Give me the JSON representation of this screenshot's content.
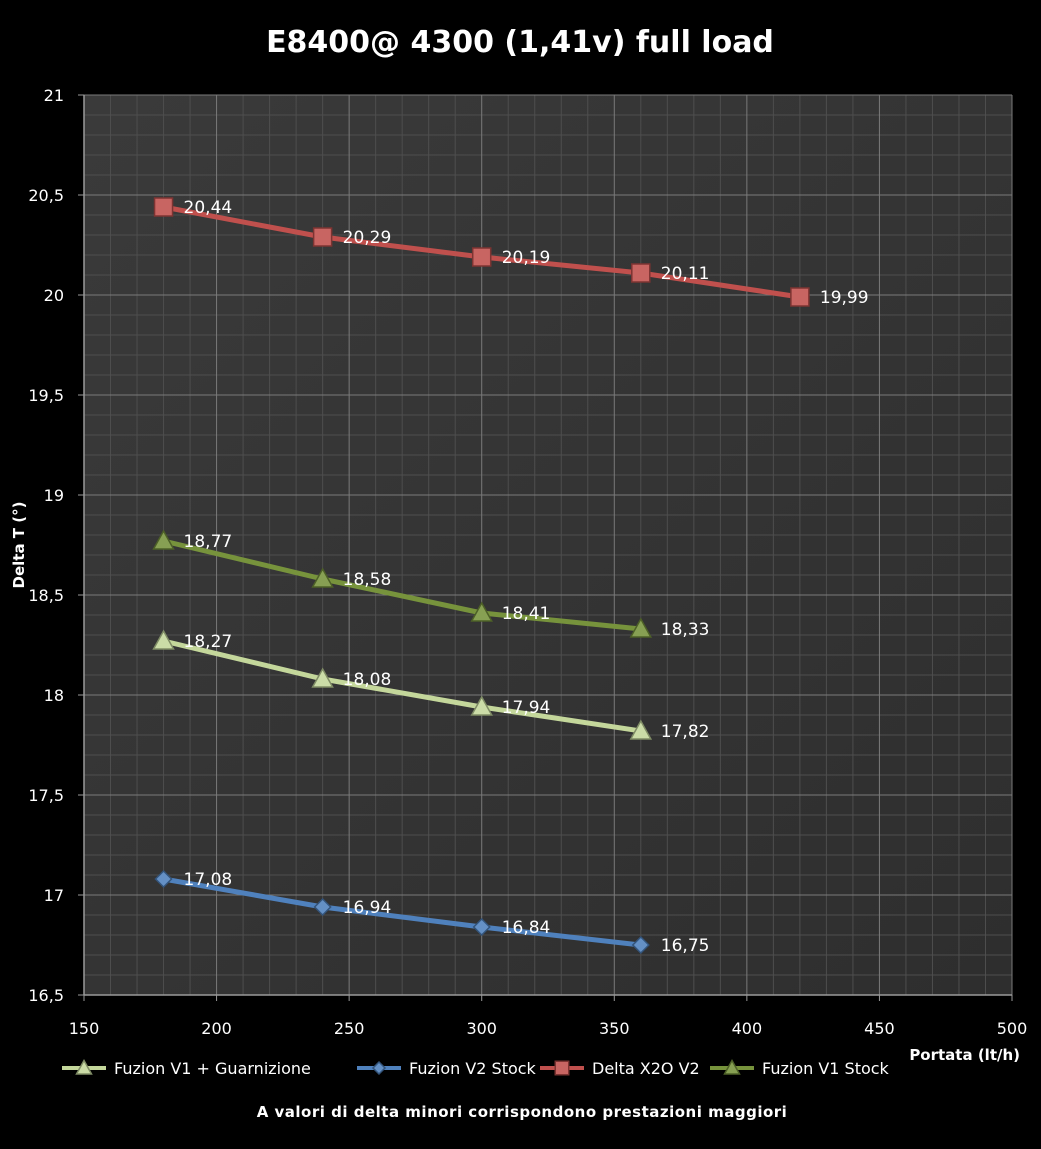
{
  "chart_data": {
    "type": "line",
    "title": "E8400@ 4300 (1,41v) full load",
    "xlabel": "Portata (lt/h)",
    "ylabel": "Delta T (°)",
    "footnote": "A valori di delta minori corrispondono prestazioni maggiori",
    "xlim": [
      150,
      500
    ],
    "ylim": [
      16.5,
      21
    ],
    "x_ticks": [
      150,
      200,
      250,
      300,
      350,
      400,
      450,
      500
    ],
    "x_tick_labels": [
      "150",
      "200",
      "250",
      "300",
      "350",
      "400",
      "450",
      "500"
    ],
    "y_ticks": [
      16.5,
      17,
      17.5,
      18,
      18.5,
      19,
      19.5,
      20,
      20.5,
      21
    ],
    "y_tick_labels": [
      "16,5",
      "17",
      "17,5",
      "18",
      "18,5",
      "19",
      "19,5",
      "20",
      "20,5",
      "21"
    ],
    "grid": true,
    "legend_position": "bottom",
    "series": [
      {
        "name": "Fuzion V1 + Guarnizione",
        "color": "#c4d79b",
        "marker": "triangle",
        "x": [
          180,
          240,
          300,
          360
        ],
        "y": [
          18.27,
          18.08,
          17.94,
          17.82
        ],
        "labels": [
          "18,27",
          "18,08",
          "17,94",
          "17,82"
        ]
      },
      {
        "name": "Fuzion V2 Stock",
        "color": "#4f81bd",
        "marker": "diamond",
        "x": [
          180,
          240,
          300,
          360
        ],
        "y": [
          17.08,
          16.94,
          16.84,
          16.75
        ],
        "labels": [
          "17,08",
          "16,94",
          "16,84",
          "16,75"
        ]
      },
      {
        "name": "Delta X2O V2",
        "color": "#c0504d",
        "marker": "square",
        "x": [
          180,
          240,
          300,
          360,
          420
        ],
        "y": [
          20.44,
          20.29,
          20.19,
          20.11,
          19.99
        ],
        "labels": [
          "20,44",
          "20,29",
          "20,19",
          "20,11",
          "19,99"
        ]
      },
      {
        "name": "Fuzion V1 Stock",
        "color": "#77933c",
        "marker": "triangle",
        "x": [
          180,
          240,
          300,
          360
        ],
        "y": [
          18.77,
          18.58,
          18.41,
          18.33
        ],
        "labels": [
          "18,77",
          "18,58",
          "18,41",
          "18,33"
        ]
      }
    ]
  }
}
